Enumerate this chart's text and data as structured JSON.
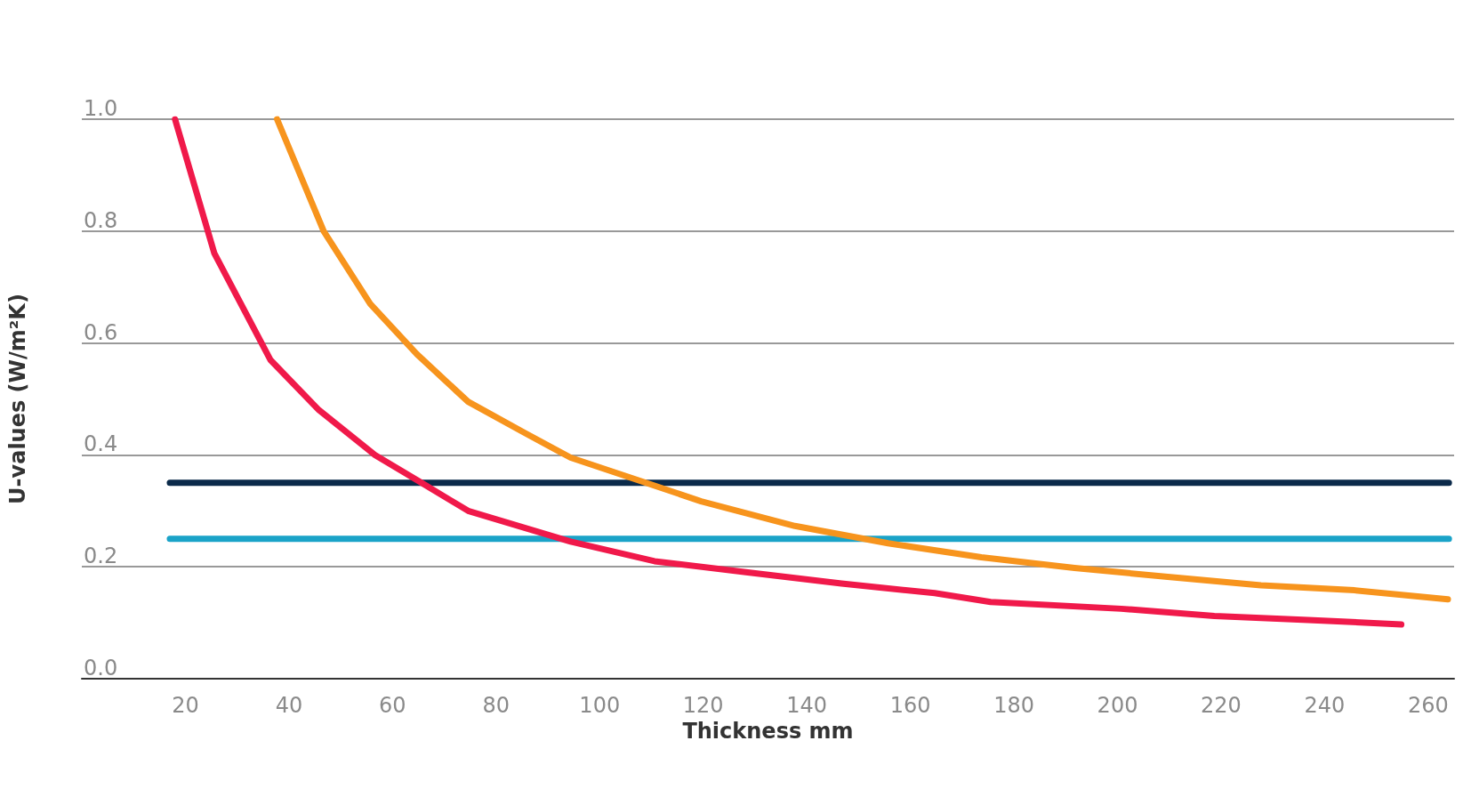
{
  "chart_data": {
    "type": "line",
    "xlabel": "Thickness mm",
    "ylabel": "U-values (W/m²K)",
    "xlim": [
      0,
      265
    ],
    "xticks": [
      20,
      40,
      60,
      80,
      100,
      120,
      140,
      160,
      180,
      200,
      220,
      240,
      260
    ],
    "ylim": [
      0,
      1
    ],
    "yticks": [
      {
        "value": 0,
        "label": "0.0"
      },
      0.2,
      0.4,
      0.6,
      0.8,
      {
        "value": 1,
        "label": "1.0"
      }
    ],
    "grid": "y",
    "marker": "none",
    "line_style": "solid",
    "series": [
      {
        "color": "#0b2a4a",
        "x": [
          17,
          264
        ],
        "values": [
          0.35,
          0.35
        ]
      },
      {
        "color": "#1aa3c8",
        "x": [
          17,
          264
        ],
        "values": [
          0.25,
          0.25
        ]
      },
      {
        "color": "#f0194a",
        "x": [
          18,
          25.6,
          36.4,
          45.8,
          56.6,
          65.6,
          74.6,
          94.4,
          110.6,
          128.6,
          146.7,
          164.7,
          175.5,
          200.7,
          218.7,
          236.8,
          254.8
        ],
        "values": [
          1.0,
          0.76,
          0.57,
          0.48,
          0.4,
          0.35,
          0.3,
          0.245,
          0.21,
          0.19,
          0.17,
          0.153,
          0.137,
          0.125,
          0.112,
          0.105,
          0.097
        ]
      },
      {
        "color": "#f7941d",
        "x": [
          37.7,
          46.7,
          55.7,
          64.7,
          74.6,
          85.4,
          94.4,
          110.6,
          119.6,
          137.7,
          155.7,
          173.7,
          191.7,
          209.7,
          227.7,
          245.8,
          263.8
        ],
        "values": [
          1.0,
          0.8,
          0.67,
          0.58,
          0.495,
          0.44,
          0.395,
          0.345,
          0.317,
          0.273,
          0.242,
          0.217,
          0.198,
          0.182,
          0.167,
          0.158,
          0.142
        ]
      }
    ]
  }
}
